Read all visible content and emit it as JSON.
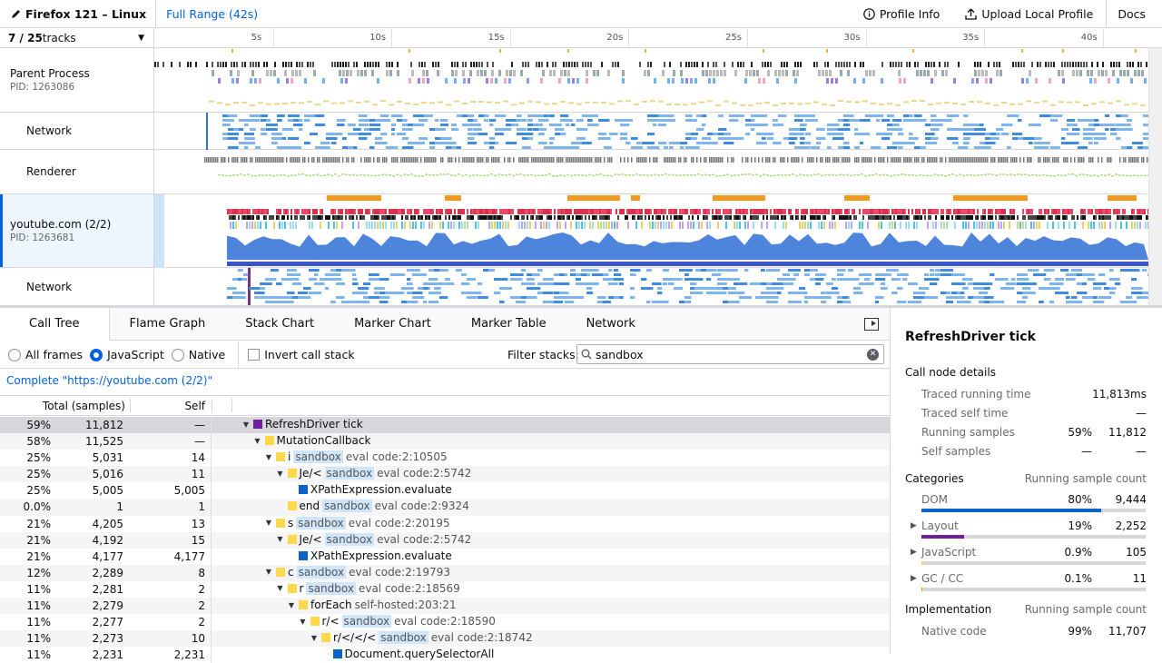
{
  "topbar": {
    "title": "Firefox 121 – Linux",
    "range": "Full Range (42s)",
    "profile_info": "Profile Info",
    "upload": "Upload Local Profile",
    "docs": "Docs"
  },
  "timeline": {
    "track_count_bold": "7 / 25",
    "track_count_rest": " tracks",
    "ticks": [
      "5s",
      "10s",
      "15s",
      "20s",
      "25s",
      "30s",
      "35s",
      "40s"
    ],
    "tracks": [
      {
        "name": "Parent Process",
        "pid": "PID: 1263086"
      },
      {
        "name": "Network"
      },
      {
        "name": "Renderer"
      },
      {
        "name": "youtube.com (2/2)",
        "pid": "PID: 1263681"
      },
      {
        "name": "Network"
      }
    ]
  },
  "tabs": [
    "Call Tree",
    "Flame Graph",
    "Stack Chart",
    "Marker Chart",
    "Marker Table",
    "Network"
  ],
  "settings": {
    "all_frames": "All frames",
    "javascript": "JavaScript",
    "native": "Native",
    "invert": "Invert call stack",
    "filter_label": "Filter stacks:",
    "filter_value": "sandbox"
  },
  "breadcrumb": "Complete \"https://youtube.com (2/2)\"",
  "tree_header": {
    "total": "Total (samples)",
    "self": "Self"
  },
  "tree_rows": [
    {
      "pct": "59%",
      "count": "11,812",
      "self": "—",
      "depth": 0,
      "twisty": "▼",
      "color": "#6f1f9e",
      "name": "RefreshDriver tick",
      "sbx": "",
      "lib": ""
    },
    {
      "pct": "58%",
      "count": "11,525",
      "self": "—",
      "depth": 1,
      "twisty": "▼",
      "color": "#ffd94a",
      "name": "MutationCallback",
      "sbx": "",
      "lib": ""
    },
    {
      "pct": "25%",
      "count": "5,031",
      "self": "14",
      "depth": 2,
      "twisty": "▼",
      "color": "#ffd94a",
      "name": "i",
      "sbx": "sandbox",
      "lib": "eval code:2:10505"
    },
    {
      "pct": "25%",
      "count": "5,016",
      "self": "11",
      "depth": 3,
      "twisty": "▼",
      "color": "#ffd94a",
      "name": "Je/<",
      "sbx": "sandbox",
      "lib": "eval code:2:5742"
    },
    {
      "pct": "25%",
      "count": "5,005",
      "self": "5,005",
      "depth": 4,
      "twisty": "",
      "color": "#0b63c8",
      "name": "XPathExpression.evaluate",
      "sbx": "",
      "lib": ""
    },
    {
      "pct": "0.0%",
      "count": "1",
      "self": "1",
      "depth": 3,
      "twisty": "",
      "color": "#ffd94a",
      "name": "end",
      "sbx": "sandbox",
      "lib": "eval code:2:9324"
    },
    {
      "pct": "21%",
      "count": "4,205",
      "self": "13",
      "depth": 2,
      "twisty": "▼",
      "color": "#ffd94a",
      "name": "s",
      "sbx": "sandbox",
      "lib": "eval code:2:20195"
    },
    {
      "pct": "21%",
      "count": "4,192",
      "self": "15",
      "depth": 3,
      "twisty": "▼",
      "color": "#ffd94a",
      "name": "Je/<",
      "sbx": "sandbox",
      "lib": "eval code:2:5742"
    },
    {
      "pct": "21%",
      "count": "4,177",
      "self": "4,177",
      "depth": 4,
      "twisty": "",
      "color": "#0b63c8",
      "name": "XPathExpression.evaluate",
      "sbx": "",
      "lib": ""
    },
    {
      "pct": "12%",
      "count": "2,289",
      "self": "8",
      "depth": 2,
      "twisty": "▼",
      "color": "#ffd94a",
      "name": "c",
      "sbx": "sandbox",
      "lib": "eval code:2:19793"
    },
    {
      "pct": "11%",
      "count": "2,281",
      "self": "2",
      "depth": 3,
      "twisty": "▼",
      "color": "#ffd94a",
      "name": "r",
      "sbx": "sandbox",
      "lib": "eval code:2:18569"
    },
    {
      "pct": "11%",
      "count": "2,279",
      "self": "2",
      "depth": 4,
      "twisty": "▼",
      "color": "#ffd94a",
      "name": "forEach",
      "sbx": "",
      "lib": "self-hosted:203:21"
    },
    {
      "pct": "11%",
      "count": "2,277",
      "self": "2",
      "depth": 5,
      "twisty": "▼",
      "color": "#ffd94a",
      "name": "r/<",
      "sbx": "sandbox",
      "lib": "eval code:2:18590"
    },
    {
      "pct": "11%",
      "count": "2,273",
      "self": "10",
      "depth": 6,
      "twisty": "▼",
      "color": "#ffd94a",
      "name": "r/</</<",
      "sbx": "sandbox",
      "lib": "eval code:2:18742"
    },
    {
      "pct": "11%",
      "count": "2,231",
      "self": "2,231",
      "depth": 7,
      "twisty": "",
      "color": "#0b63c8",
      "name": "Document.querySelectorAll",
      "sbx": "",
      "lib": ""
    }
  ],
  "sidebar": {
    "title": "RefreshDriver tick",
    "details_heading": "Call node details",
    "details": [
      {
        "k": "Traced running time",
        "pct": "",
        "v": "11,813ms"
      },
      {
        "k": "Traced self time",
        "pct": "",
        "v": "—"
      },
      {
        "k": "Running samples",
        "pct": "59%",
        "v": "11,812"
      },
      {
        "k": "Self samples",
        "pct": "—",
        "v": "—"
      }
    ],
    "categories_heading": "Categories",
    "categories_col": "Running sample count",
    "categories": [
      {
        "name": "DOM",
        "pct": "80%",
        "count": "9,444",
        "fraction": 0.8,
        "color": "#0b63c8",
        "expandable": false
      },
      {
        "name": "Layout",
        "pct": "19%",
        "count": "2,252",
        "fraction": 0.19,
        "color": "#6f1f9e",
        "expandable": true
      },
      {
        "name": "JavaScript",
        "pct": "0.9%",
        "count": "105",
        "fraction": 0.009,
        "color": "#ffd94a",
        "expandable": true
      },
      {
        "name": "GC / CC",
        "pct": "0.1%",
        "count": "11",
        "fraction": 0.001,
        "color": "#ff9400",
        "expandable": true
      }
    ],
    "impl_heading": "Implementation",
    "impl_col": "Running sample count",
    "impl": [
      {
        "k": "Native code",
        "pct": "99%",
        "v": "11,707"
      }
    ]
  }
}
